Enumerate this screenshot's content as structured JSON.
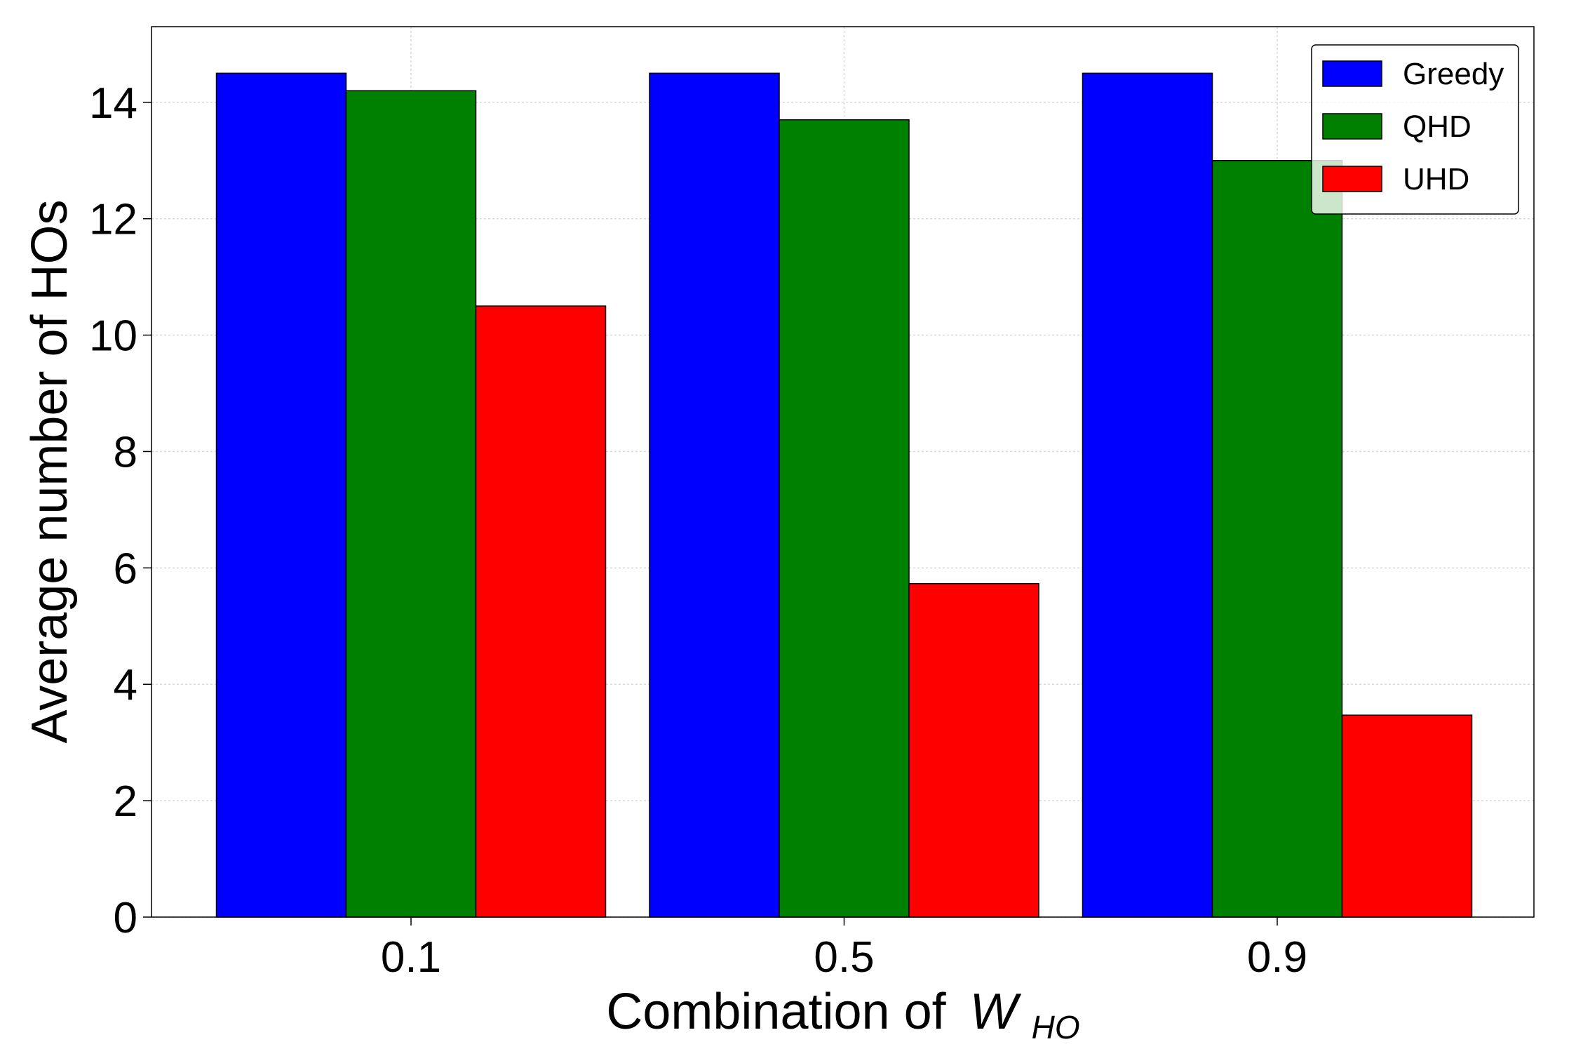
{
  "chart_data": {
    "type": "bar",
    "categories": [
      "0.1",
      "0.5",
      "0.9"
    ],
    "series": [
      {
        "name": "Greedy",
        "color": "#0000ff",
        "values": [
          14.5,
          14.5,
          14.5
        ]
      },
      {
        "name": "QHD",
        "color": "#008000",
        "values": [
          14.2,
          13.7,
          13.0
        ]
      },
      {
        "name": "UHD",
        "color": "#ff0000",
        "values": [
          10.5,
          5.73,
          3.47
        ]
      }
    ],
    "xlabel": "Combination of",
    "xlabel_math": {
      "symbol": "W",
      "subscript": "HO"
    },
    "ylabel": "Average number of HOs",
    "ylim": [
      0,
      15.3
    ],
    "yticks": [
      0,
      2,
      4,
      6,
      8,
      10,
      12,
      14
    ],
    "grid": true,
    "legend_position": "top-right"
  }
}
